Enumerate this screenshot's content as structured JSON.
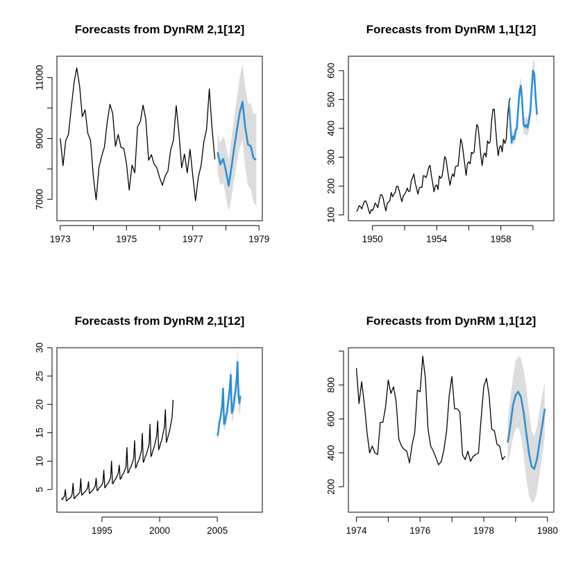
{
  "colors": {
    "history": "#000000",
    "forecast": "#2b8fd8",
    "interval": "#dcdcdc",
    "axis": "#000000"
  },
  "chart_data": [
    {
      "type": "line",
      "title": "Forecasts from DynRM 2,1[12]",
      "xlim": [
        1972.9,
        1979.1
      ],
      "ylim": [
        6300,
        11700
      ],
      "xticks": [
        1973,
        1974,
        1975,
        1976,
        1977,
        1978,
        1979
      ],
      "xtick_labels": [
        "1973",
        "",
        "1975",
        "",
        "1977",
        "",
        "1979"
      ],
      "yticks": [
        7000,
        8000,
        9000,
        10000,
        11000
      ],
      "ytick_labels": [
        "7000",
        "",
        "9000",
        "",
        "11000"
      ],
      "history": {
        "start": 1973.0,
        "step": 0.0833333,
        "values": [
          9007,
          8106,
          8928,
          9137,
          10017,
          10826,
          11317,
          10744,
          9713,
          9938,
          9161,
          8927,
          7750,
          6981,
          8038,
          8422,
          8714,
          9512,
          10120,
          9823,
          8743,
          9129,
          8710,
          8680,
          8162,
          7306,
          8124,
          7870,
          9387,
          9556,
          10093,
          9620,
          8285,
          8466,
          8160,
          8034,
          7717,
          7461,
          7767,
          7925,
          8623,
          8945,
          10078,
          9179,
          8037,
          8488,
          7874,
          8647,
          7792,
          6957,
          7726,
          8106,
          8890,
          9299,
          10625,
          9302,
          8314
        ]
      },
      "forecast": {
        "start": 1977.75,
        "step": 0.0833333,
        "values": [
          8550,
          8150,
          8330,
          7940,
          7450,
          8030,
          8690,
          9280,
          9860,
          10200,
          9370,
          8800,
          8750,
          8350,
          8300
        ],
        "lower": [
          7900,
          7450,
          7550,
          7100,
          6600,
          7050,
          7650,
          8200,
          8700,
          8950,
          8050,
          7450,
          7350,
          6900,
          6800
        ],
        "upper": [
          9200,
          8850,
          9100,
          8800,
          8300,
          9000,
          9700,
          10350,
          11000,
          11450,
          10700,
          10150,
          10150,
          9800,
          9800
        ]
      }
    },
    {
      "type": "line",
      "title": "Forecasts from DynRM 1,1[12]",
      "xlim": [
        1948.5,
        1961.3
      ],
      "ylim": [
        80,
        650
      ],
      "xticks": [
        1950,
        1952,
        1954,
        1956,
        1958,
        1960
      ],
      "xtick_labels": [
        "1950",
        "",
        "1954",
        "",
        "1958",
        ""
      ],
      "yticks": [
        100,
        200,
        300,
        400,
        500,
        600
      ],
      "ytick_labels": [
        "100",
        "200",
        "300",
        "400",
        "500",
        "600"
      ],
      "history": {
        "start": 1949.0,
        "step": 0.0833333,
        "values": [
          112,
          118,
          132,
          129,
          121,
          135,
          148,
          148,
          136,
          119,
          104,
          118,
          115,
          126,
          141,
          135,
          125,
          149,
          170,
          170,
          158,
          133,
          114,
          140,
          145,
          150,
          178,
          163,
          172,
          178,
          199,
          199,
          184,
          162,
          146,
          166,
          171,
          180,
          193,
          181,
          183,
          218,
          230,
          242,
          209,
          191,
          172,
          194,
          196,
          196,
          236,
          235,
          229,
          243,
          264,
          272,
          237,
          211,
          180,
          201,
          204,
          188,
          235,
          227,
          234,
          264,
          302,
          293,
          259,
          229,
          203,
          229,
          242,
          233,
          267,
          269,
          270,
          315,
          364,
          347,
          312,
          274,
          237,
          278,
          284,
          277,
          317,
          313,
          318,
          374,
          413,
          405,
          355,
          306,
          271,
          306,
          315,
          301,
          356,
          348,
          355,
          422,
          465,
          467,
          404,
          347,
          305,
          336,
          340,
          318,
          362,
          348,
          363,
          435,
          491,
          505
        ]
      },
      "forecast": {
        "start": 1958.5,
        "step": 0.0833333,
        "values": [
          490,
          420,
          350,
          372,
          362,
          395,
          398,
          472,
          530,
          548,
          488,
          412,
          405,
          412,
          402,
          430,
          456,
          535,
          600,
          588,
          505,
          448
        ]
      },
      "band": {
        "start": 1958.5,
        "step": 0.0833333,
        "lower": [
          465,
          390,
          332,
          350,
          342,
          372,
          376,
          445,
          503,
          518,
          457,
          383,
          375,
          381,
          372,
          398,
          422,
          499,
          560,
          546,
          466,
          410
        ],
        "upper": [
          515,
          450,
          368,
          394,
          382,
          418,
          420,
          499,
          557,
          578,
          519,
          441,
          435,
          443,
          432,
          462,
          490,
          571,
          640,
          630,
          544,
          486
        ]
      }
    },
    {
      "type": "line",
      "title": "Forecasts from DynRM 2,1[12]",
      "xlim": [
        1991.1,
        2008.9
      ],
      "ylim": [
        1.0,
        30.0
      ],
      "xticks": [
        1995,
        2000,
        2005
      ],
      "xtick_labels": [
        "1995",
        "2000",
        "2005"
      ],
      "yticks": [
        5,
        10,
        15,
        20,
        25,
        30
      ],
      "ytick_labels": [
        "5",
        "10",
        "15",
        "20",
        "25",
        "30"
      ],
      "history": {
        "start": 1991.5,
        "step": 0.0833333,
        "values": [
          3.5,
          3.2,
          3.6,
          3.8,
          5.0,
          3.0,
          3.1,
          3.3,
          3.4,
          3.5,
          3.7,
          4.2,
          6.1,
          3.4,
          3.5,
          3.8,
          3.9,
          4.1,
          4.3,
          4.5,
          6.9,
          4.0,
          4.1,
          4.4,
          4.5,
          4.7,
          5.0,
          5.2,
          6.4,
          4.3,
          4.4,
          4.7,
          4.8,
          5.0,
          5.3,
          5.6,
          7.0,
          4.8,
          4.9,
          5.3,
          5.4,
          5.6,
          5.9,
          6.2,
          8.4,
          5.3,
          5.5,
          5.9,
          6.0,
          6.3,
          6.7,
          7.0,
          10.0,
          6.0,
          6.2,
          6.6,
          6.8,
          7.1,
          7.5,
          7.9,
          9.3,
          6.8,
          7.0,
          7.5,
          7.7,
          8.1,
          8.5,
          9.0,
          12.4,
          7.9,
          8.1,
          8.7,
          8.9,
          9.4,
          9.9,
          10.5,
          13.6,
          8.8,
          9.1,
          9.7,
          10.0,
          10.5,
          11.1,
          11.8,
          14.9,
          9.8,
          10.1,
          10.8,
          11.1,
          11.7,
          12.3,
          13.0,
          16.5,
          10.8,
          11.2,
          11.9,
          12.3,
          13.0,
          13.7,
          14.5,
          17.1,
          12.0,
          12.5,
          13.2,
          13.6,
          14.4,
          15.2,
          16.1,
          19.1,
          13.3,
          13.8,
          14.6,
          15.1,
          15.9,
          16.8,
          17.8,
          20.8
        ]
      },
      "forecast": {
        "start": 2005.0,
        "step": 0.0833333,
        "values": [
          14.5,
          15.0,
          16.8,
          17.4,
          18.6,
          19.8,
          22.8,
          16.5,
          16.8,
          18.0,
          18.6,
          20.1,
          21.4,
          23.0,
          25.2,
          18.5,
          18.9,
          20.0,
          21.5,
          22.5,
          24.3,
          27.5,
          21.5,
          20.2,
          21.5
        ]
      },
      "band": {
        "start": 2005.0,
        "step": 0.0833333,
        "lower": [
          13.8,
          14.2,
          15.9,
          16.4,
          17.5,
          18.6,
          21.4,
          15.4,
          15.6,
          16.7,
          17.2,
          18.5,
          19.7,
          21.1,
          23.1,
          16.9,
          17.2,
          18.2,
          19.5,
          20.3,
          21.9,
          24.8,
          19.3,
          18.0,
          19.1
        ],
        "upper": [
          15.2,
          15.8,
          17.7,
          18.4,
          19.7,
          21.0,
          24.2,
          17.6,
          18.0,
          19.3,
          20.0,
          21.7,
          23.1,
          24.9,
          27.3,
          20.1,
          20.6,
          21.8,
          23.5,
          24.7,
          26.7,
          30.2,
          23.7,
          22.4,
          23.9
        ]
      }
    },
    {
      "type": "line",
      "title": "Forecasts from DynRM 1,1[12]",
      "xlim": [
        1973.75,
        1980.2
      ],
      "ylim": [
        50,
        1020
      ],
      "xticks": [
        1974,
        1975,
        1976,
        1977,
        1978,
        1979,
        1980
      ],
      "xtick_labels": [
        "1974",
        "",
        "1976",
        "",
        "1978",
        "",
        "1980"
      ],
      "yticks": [
        200,
        400,
        600,
        800,
        1000
      ],
      "ytick_labels": [
        "200",
        "400",
        "600",
        "800",
        ""
      ],
      "history": {
        "start": 1974.0,
        "step": 0.0833333,
        "values": [
          900,
          690,
          820,
          690,
          520,
          400,
          440,
          400,
          390,
          580,
          580,
          670,
          830,
          750,
          790,
          700,
          480,
          440,
          420,
          410,
          340,
          450,
          520,
          770,
          760,
          970,
          840,
          540,
          440,
          410,
          370,
          330,
          350,
          420,
          530,
          740,
          850,
          660,
          660,
          640,
          390,
          360,
          410,
          350,
          380,
          390,
          400,
          600,
          790,
          840,
          740,
          540,
          530,
          450,
          440,
          360,
          380
        ]
      },
      "forecast": {
        "start": 1978.75,
        "step": 0.0833333,
        "values": [
          460,
          560,
          680,
          740,
          760,
          730,
          640,
          520,
          400,
          320,
          305,
          360,
          460,
          560,
          660
        ]
      },
      "band": {
        "start": 1978.75,
        "step": 0.0833333,
        "lower": [
          330,
          400,
          490,
          540,
          550,
          500,
          390,
          250,
          150,
          110,
          110,
          170,
          270,
          380,
          500
        ],
        "upper": [
          590,
          720,
          850,
          940,
          970,
          960,
          890,
          790,
          650,
          530,
          500,
          550,
          650,
          740,
          820
        ]
      }
    }
  ]
}
